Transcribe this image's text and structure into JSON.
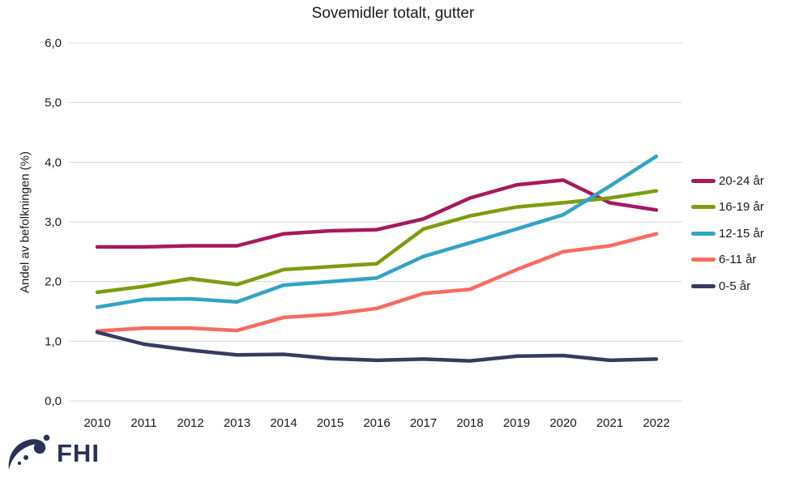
{
  "title": "Sovemidler totalt, gutter",
  "logo": {
    "text": "FHI",
    "color": "#283159"
  },
  "colors": {
    "background": "#ffffff",
    "gridline": "#d9d9d9",
    "text": "#1a1a1a",
    "series_20_24": "#a6195d",
    "series_16_19": "#7d9c11",
    "series_12_15": "#31a3c6",
    "series_6_11": "#fa6a5f",
    "series_0_5": "#353b61"
  },
  "chart_data": {
    "type": "line",
    "title": "Sovemidler totalt, gutter",
    "xlabel": "",
    "ylabel": "Andel av befolkningen (%)",
    "x": [
      2010,
      2011,
      2012,
      2013,
      2014,
      2015,
      2016,
      2017,
      2018,
      2019,
      2020,
      2021,
      2022
    ],
    "x_labels": [
      "2010",
      "2011",
      "2012",
      "2013",
      "2014",
      "2015",
      "2016",
      "2017",
      "2018",
      "2019",
      "2020",
      "2021",
      "2022"
    ],
    "ylim": [
      0,
      6
    ],
    "ytick_values": [
      0,
      1,
      2,
      3,
      4,
      5,
      6
    ],
    "ytick_labels": [
      "0,0",
      "1,0",
      "2,0",
      "3,0",
      "4,0",
      "5,0",
      "6,0"
    ],
    "grid": true,
    "legend_position": "right",
    "series": [
      {
        "name": "20-24 år",
        "color": "#a6195d",
        "values": [
          2.58,
          2.58,
          2.6,
          2.6,
          2.8,
          2.85,
          2.87,
          3.05,
          3.4,
          3.62,
          3.7,
          3.32,
          3.2
        ]
      },
      {
        "name": "16-19 år",
        "color": "#7d9c11",
        "values": [
          1.82,
          1.92,
          2.05,
          1.95,
          2.2,
          2.25,
          2.3,
          2.88,
          3.1,
          3.25,
          3.32,
          3.4,
          3.52
        ]
      },
      {
        "name": "12-15 år",
        "color": "#31a3c6",
        "values": [
          1.57,
          1.7,
          1.71,
          1.66,
          1.94,
          2.0,
          2.06,
          2.42,
          2.65,
          2.88,
          3.12,
          3.6,
          4.1
        ]
      },
      {
        "name": "6-11 år",
        "color": "#fa6a5f",
        "values": [
          1.17,
          1.22,
          1.22,
          1.18,
          1.4,
          1.45,
          1.55,
          1.8,
          1.87,
          2.2,
          2.5,
          2.6,
          2.8
        ]
      },
      {
        "name": "0-5 år",
        "color": "#353b61",
        "values": [
          1.15,
          0.95,
          0.85,
          0.77,
          0.78,
          0.71,
          0.68,
          0.7,
          0.67,
          0.75,
          0.76,
          0.68,
          0.7
        ]
      }
    ]
  }
}
